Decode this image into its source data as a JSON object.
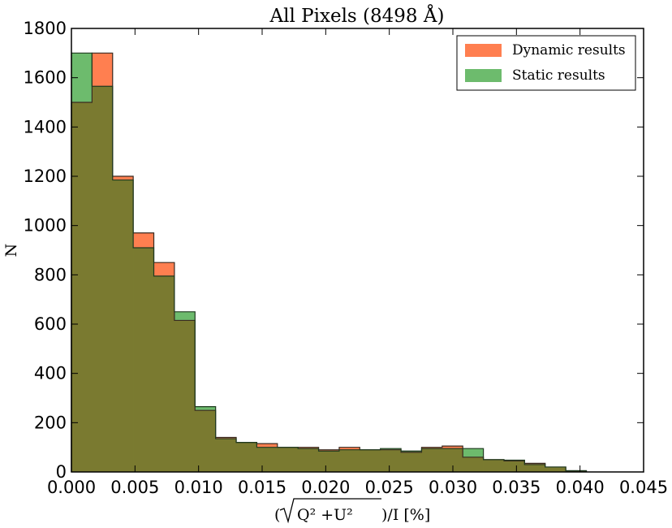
{
  "chart_data": {
    "type": "bar",
    "title": "All Pixels (8498 Å)",
    "xlabel_parts": {
      "open": "(",
      "radicand": "Q² +U²",
      "close": ")/I [%]"
    },
    "ylabel": "N",
    "xlim": [
      0.0,
      0.045
    ],
    "ylim": [
      0,
      1800
    ],
    "xticks": [
      "0.000",
      "0.005",
      "0.010",
      "0.015",
      "0.020",
      "0.025",
      "0.030",
      "0.035",
      "0.040",
      "0.045"
    ],
    "yticks": [
      "0",
      "200",
      "400",
      "600",
      "800",
      "1000",
      "1200",
      "1400",
      "1600",
      "1800"
    ],
    "bin_edges": [
      0.0,
      0.00162,
      0.00324,
      0.00486,
      0.00648,
      0.0081,
      0.00972,
      0.01134,
      0.01296,
      0.01458,
      0.0162,
      0.01782,
      0.01944,
      0.02106,
      0.02268,
      0.0243,
      0.02592,
      0.02754,
      0.02916,
      0.03078,
      0.0324,
      0.03402,
      0.03564,
      0.03726,
      0.03888,
      0.0405
    ],
    "series": [
      {
        "name": "Dynamic results",
        "color": "#ff7f50",
        "values": [
          1500,
          1700,
          1200,
          970,
          850,
          615,
          250,
          140,
          120,
          115,
          100,
          100,
          90,
          100,
          90,
          90,
          80,
          100,
          105,
          60,
          50,
          45,
          35,
          20,
          5
        ]
      },
      {
        "name": "Static results",
        "color": "#6dbb6d",
        "values": [
          1700,
          1565,
          1185,
          910,
          795,
          650,
          265,
          135,
          120,
          100,
          100,
          95,
          85,
          90,
          90,
          95,
          85,
          95,
          95,
          95,
          50,
          48,
          30,
          20,
          5
        ]
      }
    ],
    "grid": false,
    "legend_position": "top-right"
  }
}
